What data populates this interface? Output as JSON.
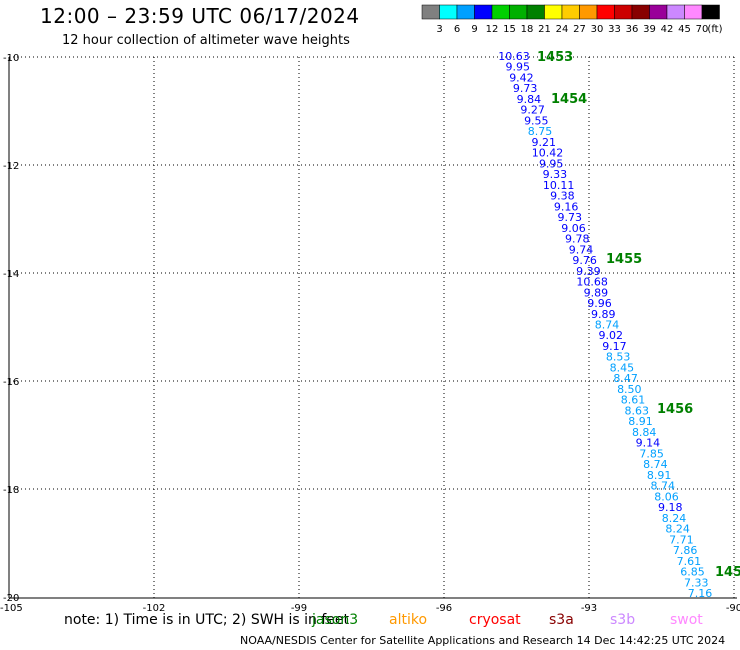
{
  "header": {
    "title": "12:00 – 23:59 UTC 06/17/2024",
    "subtitle": "12 hour collection of altimeter wave heights"
  },
  "legend": {
    "unit": "(ft)",
    "ticks": [
      "3",
      "6",
      "9",
      "12",
      "15",
      "18",
      "21",
      "24",
      "27",
      "30",
      "33",
      "36",
      "39",
      "42",
      "45",
      "70"
    ],
    "colors": [
      "#808080",
      "#00ffff",
      "#00a0ff",
      "#0000ff",
      "#00d000",
      "#00b000",
      "#008000",
      "#ffff00",
      "#ffcc00",
      "#ff9900",
      "#ff0000",
      "#cc0000",
      "#880000",
      "#990099",
      "#cc88ff",
      "#ff88ff",
      "#000000"
    ]
  },
  "axes": {
    "x_ticks": [
      "-105",
      "-102",
      "-99",
      "-96",
      "-93",
      "-90"
    ],
    "y_ticks": [
      "-10",
      "-12",
      "-14",
      "-16",
      "-18",
      "-20"
    ]
  },
  "track": {
    "swh_ft": [
      "10.63",
      "9.95",
      "9.42",
      "9.73",
      "9.84",
      "9.27",
      "9.55",
      "8.75",
      "9.21",
      "10.42",
      "9.95",
      "9.33",
      "10.11",
      "9.38",
      "9.16",
      "9.73",
      "9.06",
      "9.78",
      "9.74",
      "9.76",
      "9.39",
      "10.68",
      "9.89",
      "9.96",
      "9.89",
      "8.74",
      "9.02",
      "9.17",
      "8.53",
      "8.45",
      "8.47",
      "8.50",
      "8.61",
      "8.63",
      "8.91",
      "8.84",
      "9.14",
      "7.85",
      "8.74",
      "8.91",
      "8.74",
      "8.06",
      "9.18",
      "8.24",
      "8.24",
      "7.71",
      "7.86",
      "7.61",
      "6.85",
      "7.33",
      "7.16"
    ],
    "colors": [
      "#0000ff",
      "#0000ff",
      "#0000ff",
      "#0000ff",
      "#0000ff",
      "#0000ff",
      "#0000ff",
      "#00a0ff",
      "#0000ff",
      "#0000ff",
      "#0000ff",
      "#0000ff",
      "#0000ff",
      "#0000ff",
      "#0000ff",
      "#0000ff",
      "#0000ff",
      "#0000ff",
      "#0000ff",
      "#0000ff",
      "#0000ff",
      "#0000ff",
      "#0000ff",
      "#0000ff",
      "#0000ff",
      "#00a0ff",
      "#0000ff",
      "#0000ff",
      "#00a0ff",
      "#00a0ff",
      "#00a0ff",
      "#00a0ff",
      "#00a0ff",
      "#00a0ff",
      "#00a0ff",
      "#00a0ff",
      "#0000ff",
      "#00a0ff",
      "#00a0ff",
      "#00a0ff",
      "#00a0ff",
      "#00a0ff",
      "#0000ff",
      "#00a0ff",
      "#00a0ff",
      "#00a0ff",
      "#00a0ff",
      "#00a0ff",
      "#00a0ff",
      "#00a0ff",
      "#00a0ff"
    ],
    "times": [
      "1453",
      "1454",
      "1455",
      "1456",
      "145"
    ],
    "time_color": "#008000"
  },
  "note": "note: 1) Time is in UTC; 2) SWH is in feet",
  "satellites": [
    {
      "name": "jason3",
      "color": "#008000"
    },
    {
      "name": "altiko",
      "color": "#ff9900"
    },
    {
      "name": "cryosat",
      "color": "#ff0000"
    },
    {
      "name": "s3a",
      "color": "#880000"
    },
    {
      "name": "s3b",
      "color": "#cc88ff"
    },
    {
      "name": "swot",
      "color": "#ff88ff"
    }
  ],
  "footer": "NOAA/NESDIS Center for Satellite Applications and Research    14 Dec 14:42:25 UTC 2024"
}
